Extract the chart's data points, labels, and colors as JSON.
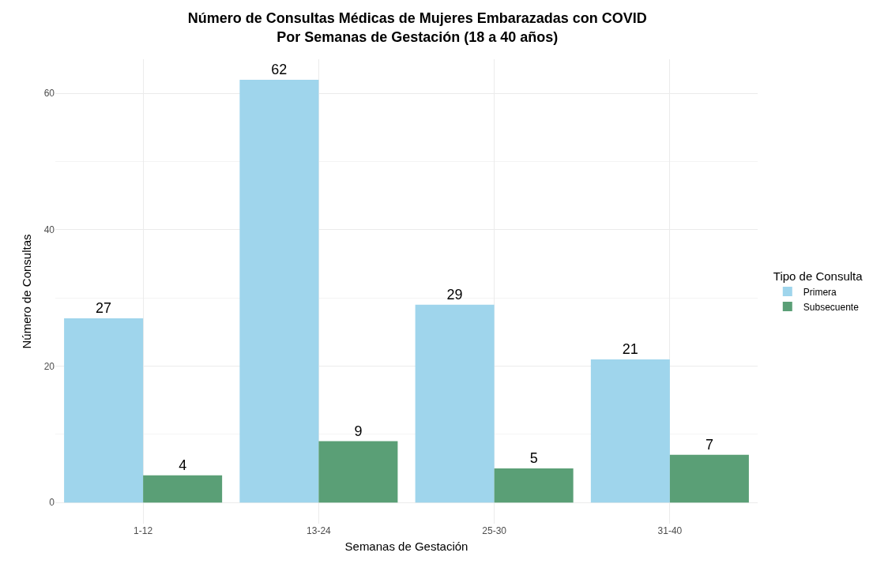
{
  "chart_data": {
    "type": "bar",
    "title": "Número de Consultas Médicas de Mujeres Embarazadas con COVID\nPor Semanas de Gestación (18 a 40 años)",
    "xlabel": "Semanas de Gestación",
    "ylabel": "Número de Consultas",
    "legend_title": "Tipo de Consulta",
    "categories": [
      "1-12",
      "13-24",
      "25-30",
      "31-40"
    ],
    "series": [
      {
        "name": "Primera",
        "color": "#9fd5ec",
        "values": [
          27,
          62,
          29,
          21
        ]
      },
      {
        "name": "Subsecuente",
        "color": "#5a9f76",
        "values": [
          4,
          9,
          5,
          7
        ]
      }
    ],
    "ylim": [
      -3.1,
      65
    ],
    "yticks": [
      0,
      20,
      40,
      60
    ],
    "grid": true,
    "legend": "right",
    "data_labels": true
  }
}
